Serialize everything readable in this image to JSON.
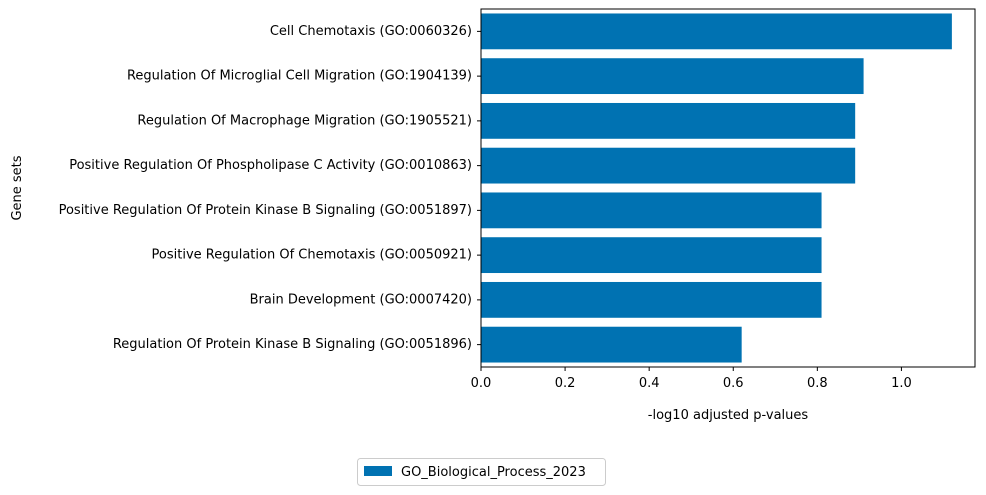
{
  "chart_data": {
    "type": "bar",
    "orientation": "horizontal",
    "xlabel": "-log10 adjusted p-values",
    "ylabel": "Gene sets",
    "xlim": [
      0,
      1.175
    ],
    "xticks": [
      "0.0",
      "0.2",
      "0.4",
      "0.6",
      "0.8",
      "1.0"
    ],
    "grid": false,
    "legend_position": "bottom-center",
    "series": [
      {
        "name": "GO_Biological_Process_2023",
        "color": "#0072b2",
        "values": [
          1.12,
          0.91,
          0.89,
          0.89,
          0.81,
          0.81,
          0.81,
          0.62
        ]
      }
    ],
    "categories": [
      "Cell Chemotaxis (GO:0060326)",
      "Regulation Of Microglial Cell Migration (GO:1904139)",
      "Regulation Of Macrophage Migration (GO:1905521)",
      "Positive Regulation Of Phospholipase C Activity (GO:0010863)",
      "Positive Regulation Of Protein Kinase B Signaling (GO:0051897)",
      "Positive Regulation Of Chemotaxis (GO:0050921)",
      "Brain Development (GO:0007420)",
      "Regulation Of Protein Kinase B Signaling (GO:0051896)"
    ]
  }
}
